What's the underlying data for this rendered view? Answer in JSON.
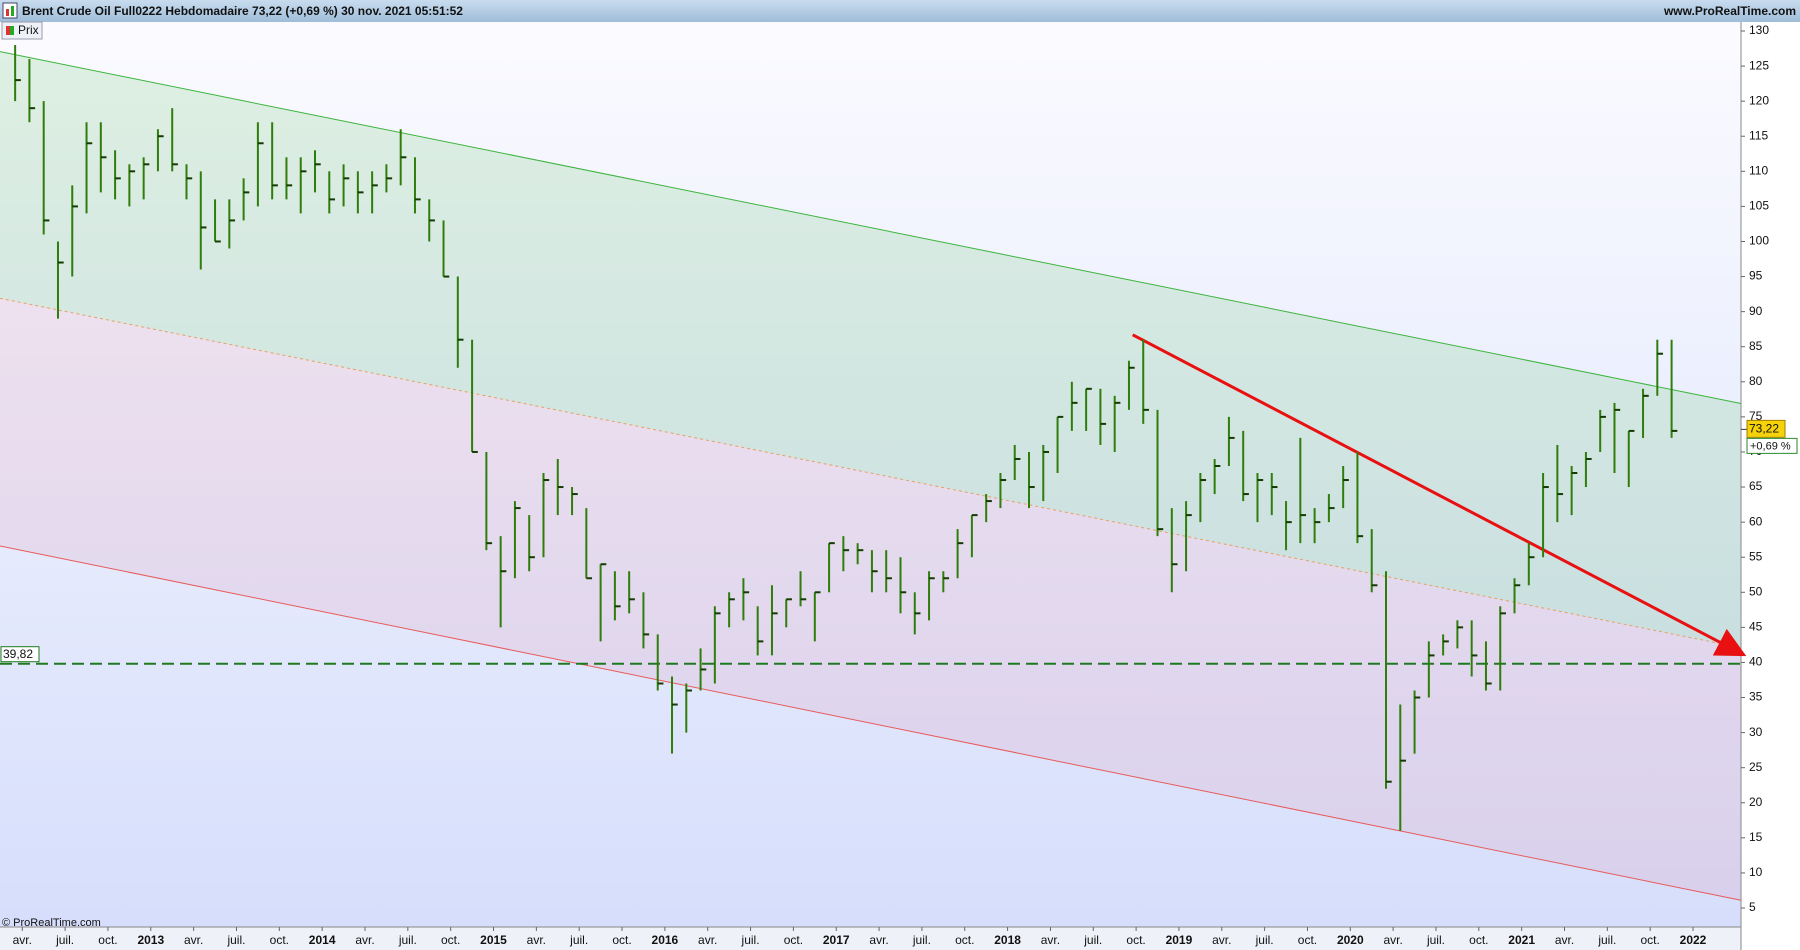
{
  "header": {
    "title": "Brent Crude Oil Full0222 Hebdomadaire 73,22 (+0,69 %) 30 nov. 2021 05:51:52",
    "site": "www.ProRealTime.com"
  },
  "legend_label": "Prix",
  "copyright": "© ProRealTime.com",
  "chart_data": {
    "type": "ohlc",
    "color": "#2f7d0a",
    "x": [
      "2012-03",
      "2012-04",
      "2012-05",
      "2012-06",
      "2012-07",
      "2012-08",
      "2012-09",
      "2012-10",
      "2012-11",
      "2012-12",
      "2013-01",
      "2013-02",
      "2013-03",
      "2013-04",
      "2013-05",
      "2013-06",
      "2013-07",
      "2013-08",
      "2013-09",
      "2013-10",
      "2013-11",
      "2013-12",
      "2014-01",
      "2014-02",
      "2014-03",
      "2014-04",
      "2014-05",
      "2014-06",
      "2014-07",
      "2014-08",
      "2014-09",
      "2014-10",
      "2014-11",
      "2014-12",
      "2015-01",
      "2015-02",
      "2015-03",
      "2015-04",
      "2015-05",
      "2015-06",
      "2015-07",
      "2015-08",
      "2015-09",
      "2015-10",
      "2015-11",
      "2015-12",
      "2016-01",
      "2016-02",
      "2016-03",
      "2016-04",
      "2016-05",
      "2016-06",
      "2016-07",
      "2016-08",
      "2016-09",
      "2016-10",
      "2016-11",
      "2016-12",
      "2017-01",
      "2017-02",
      "2017-03",
      "2017-04",
      "2017-05",
      "2017-06",
      "2017-07",
      "2017-08",
      "2017-09",
      "2017-10",
      "2017-11",
      "2017-12",
      "2018-01",
      "2018-02",
      "2018-03",
      "2018-04",
      "2018-05",
      "2018-06",
      "2018-07",
      "2018-08",
      "2018-09",
      "2018-10",
      "2018-11",
      "2018-12",
      "2019-01",
      "2019-02",
      "2019-03",
      "2019-04",
      "2019-05",
      "2019-06",
      "2019-07",
      "2019-08",
      "2019-09",
      "2019-10",
      "2019-11",
      "2019-12",
      "2020-01",
      "2020-02",
      "2020-03",
      "2020-04",
      "2020-05",
      "2020-06",
      "2020-07",
      "2020-08",
      "2020-09",
      "2020-10",
      "2020-11",
      "2020-12",
      "2021-01",
      "2021-02",
      "2021-03",
      "2021-04",
      "2021-05",
      "2021-06",
      "2021-07",
      "2021-08",
      "2021-09",
      "2021-10",
      "2021-11"
    ],
    "high": [
      128,
      126,
      120,
      100,
      108,
      117,
      117,
      113,
      111,
      112,
      116,
      119,
      111,
      110,
      106,
      106,
      109,
      117,
      117,
      112,
      112,
      113,
      110,
      111,
      110,
      110,
      111,
      116,
      112,
      106,
      103,
      95,
      86,
      70,
      58,
      63,
      61,
      67,
      69,
      65,
      62,
      54,
      53,
      53,
      50,
      44,
      38,
      37,
      42,
      48,
      50,
      52,
      48,
      51,
      49,
      53,
      50,
      57,
      58,
      57,
      56,
      56,
      55,
      50,
      53,
      53,
      59,
      61,
      64,
      67,
      71,
      70,
      71,
      75,
      80,
      79,
      79,
      78,
      83,
      86,
      76,
      62,
      63,
      67,
      69,
      75,
      73,
      67,
      67,
      63,
      72,
      62,
      64,
      68,
      70,
      59,
      53,
      34,
      36,
      43,
      44,
      46,
      46,
      43,
      48,
      52,
      57,
      67,
      71,
      68,
      70,
      76,
      77,
      73,
      79,
      86,
      86
    ],
    "low": [
      120,
      117,
      101,
      89,
      95,
      104,
      107,
      106,
      105,
      106,
      110,
      110,
      106,
      96,
      100,
      99,
      103,
      105,
      106,
      106,
      104,
      107,
      104,
      105,
      104,
      104,
      107,
      108,
      104,
      100,
      95,
      82,
      70,
      56,
      45,
      52,
      53,
      55,
      61,
      61,
      52,
      43,
      46,
      47,
      42,
      36,
      27,
      30,
      36,
      37,
      45,
      46,
      41,
      41,
      45,
      48,
      43,
      50,
      53,
      54,
      50,
      50,
      47,
      44,
      46,
      50,
      52,
      55,
      60,
      62,
      66,
      62,
      63,
      67,
      73,
      73,
      71,
      70,
      76,
      74,
      58,
      50,
      53,
      60,
      64,
      68,
      63,
      60,
      61,
      56,
      57,
      57,
      60,
      62,
      57,
      50,
      22,
      16,
      27,
      35,
      41,
      42,
      38,
      36,
      36,
      47,
      51,
      55,
      60,
      61,
      65,
      70,
      67,
      65,
      72,
      78,
      72
    ],
    "close": [
      123,
      119,
      103,
      97,
      105,
      114,
      112,
      109,
      110,
      111,
      115,
      111,
      109,
      102,
      100,
      103,
      107,
      114,
      108,
      108,
      110,
      111,
      106,
      109,
      107,
      108,
      109,
      112,
      106,
      103,
      95,
      86,
      70,
      57,
      53,
      62,
      55,
      66,
      65,
      64,
      52,
      54,
      48,
      49,
      44,
      37,
      34,
      36,
      39,
      47,
      49,
      50,
      43,
      47,
      49,
      49,
      50,
      57,
      56,
      56,
      53,
      52,
      50,
      47,
      52,
      52,
      57,
      61,
      63,
      66,
      69,
      65,
      70,
      75,
      77,
      79,
      74,
      77,
      82,
      76,
      59,
      54,
      61,
      66,
      68,
      72,
      64,
      66,
      65,
      60,
      61,
      60,
      62,
      66,
      58,
      51,
      23,
      26,
      35,
      41,
      43,
      45,
      41,
      37,
      47,
      51,
      55,
      65,
      64,
      67,
      69,
      75,
      76,
      73,
      78,
      84,
      73
    ],
    "last_price": {
      "value": 73.22,
      "label": "73,22"
    },
    "change_label": "+0,69 %",
    "hline": {
      "value": 39.82,
      "label": "39,82",
      "color": "#1e7a1e"
    },
    "lines": [
      {
        "x": [
          2012.12,
          2022.28
        ],
        "values": [
          127.06,
          76.9
        ],
        "color": "#3cb43c",
        "style": "solid"
      },
      {
        "x": [
          2012.12,
          2022.28
        ],
        "values": [
          91.9,
          42.1
        ],
        "color": "#e8a060",
        "style": "dashed"
      },
      {
        "x": [
          2012.12,
          2022.28
        ],
        "values": [
          56.6,
          6.1
        ],
        "color": "#e85a5a",
        "style": "solid"
      },
      {
        "x": [
          2018.73,
          2022.28
        ],
        "values": [
          86.7,
          41.3
        ],
        "color": "#e81010",
        "style": "arrow"
      }
    ],
    "xlim": [
      2012.12,
      2022.28
    ],
    "xticks": [
      {
        "value": 2012.25,
        "label": "avr."
      },
      {
        "value": 2012.5,
        "label": "juil."
      },
      {
        "value": 2012.75,
        "label": "oct."
      },
      2013,
      {
        "value": 2013.25,
        "label": "avr."
      },
      {
        "value": 2013.5,
        "label": "juil."
      },
      {
        "value": 2013.75,
        "label": "oct."
      },
      2014,
      {
        "value": 2014.25,
        "label": "avr."
      },
      {
        "value": 2014.5,
        "label": "juil."
      },
      {
        "value": 2014.75,
        "label": "oct."
      },
      2015,
      {
        "value": 2015.25,
        "label": "avr."
      },
      {
        "value": 2015.5,
        "label": "juil."
      },
      {
        "value": 2015.75,
        "label": "oct."
      },
      2016,
      {
        "value": 2016.25,
        "label": "avr."
      },
      {
        "value": 2016.5,
        "label": "juil."
      },
      {
        "value": 2016.75,
        "label": "oct."
      },
      2017,
      {
        "value": 2017.25,
        "label": "avr."
      },
      {
        "value": 2017.5,
        "label": "juil."
      },
      {
        "value": 2017.75,
        "label": "oct."
      },
      2018,
      {
        "value": 2018.25,
        "label": "avr."
      },
      {
        "value": 2018.5,
        "label": "juil."
      },
      {
        "value": 2018.75,
        "label": "oct."
      },
      2019,
      {
        "value": 2019.25,
        "label": "avr."
      },
      {
        "value": 2019.5,
        "label": "juil."
      },
      {
        "value": 2019.75,
        "label": "oct."
      },
      2020,
      {
        "value": 2020.25,
        "label": "avr."
      },
      {
        "value": 2020.5,
        "label": "juil."
      },
      {
        "value": 2020.75,
        "label": "oct."
      },
      2021,
      {
        "value": 2021.25,
        "label": "avr."
      },
      {
        "value": 2021.5,
        "label": "juil."
      },
      {
        "value": 2021.75,
        "label": "oct."
      },
      2022
    ],
    "ylim": [
      5,
      130
    ],
    "yticks": [
      5,
      10,
      15,
      20,
      25,
      30,
      35,
      40,
      45,
      50,
      55,
      60,
      65,
      70,
      75,
      80,
      85,
      90,
      95,
      100,
      105,
      110,
      115,
      120,
      125,
      130
    ]
  }
}
